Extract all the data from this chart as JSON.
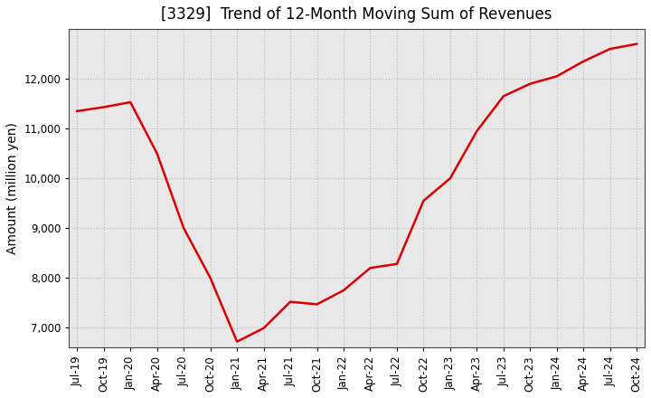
{
  "title": "[3329]  Trend of 12-Month Moving Sum of Revenues",
  "ylabel": "Amount (million yen)",
  "line_color": "#dd0000",
  "background_color": "#ffffff",
  "plot_bg_color": "#e8e8e8",
  "grid_color": "#bbbbbb",
  "ylim": [
    6600,
    13000
  ],
  "yticks": [
    7000,
    8000,
    9000,
    10000,
    11000,
    12000
  ],
  "values": [
    11350,
    11430,
    11530,
    10500,
    9000,
    8000,
    6720,
    6990,
    7520,
    7470,
    7750,
    8200,
    8280,
    9550,
    10000,
    10950,
    11650,
    11900,
    12050,
    12350,
    12600,
    12700
  ],
  "xtick_labels": [
    "Jul-19",
    "Oct-19",
    "Jan-20",
    "Apr-20",
    "Jul-20",
    "Oct-20",
    "Jan-21",
    "Apr-21",
    "Jul-21",
    "Oct-21",
    "Jan-22",
    "Apr-22",
    "Jul-22",
    "Oct-22",
    "Jan-23",
    "Apr-23",
    "Jul-23",
    "Oct-23",
    "Jan-24",
    "Apr-24",
    "Jul-24",
    "Oct-24"
  ],
  "title_fontsize": 12,
  "axis_label_fontsize": 10,
  "tick_fontsize": 8.5,
  "line_width": 1.8
}
